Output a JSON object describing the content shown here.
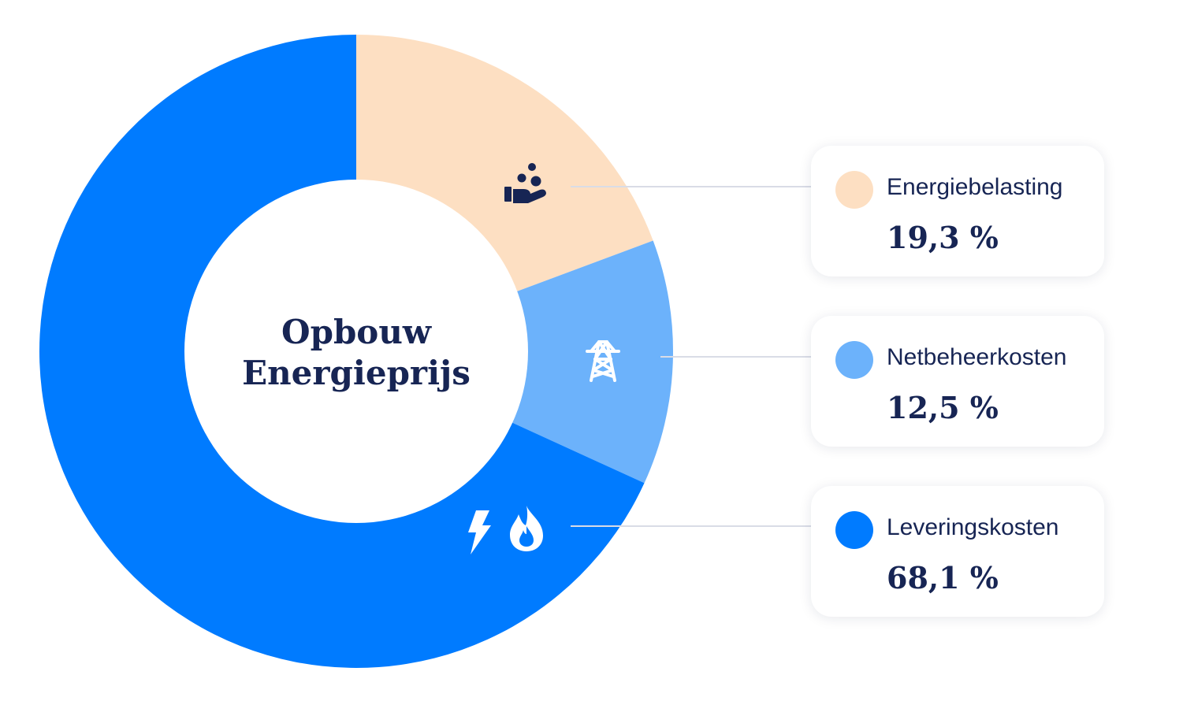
{
  "chart_data": {
    "type": "pie",
    "donut": true,
    "center_title": [
      "Opbouw",
      "Energieprijs"
    ],
    "slices": [
      {
        "label": "Energiebelasting",
        "value_text": "19,3 %",
        "value": 19.3,
        "color": "#FDDFC2",
        "icon": "hand-coins-icon"
      },
      {
        "label": "Netbeheerkosten",
        "value_text": "12,5 %",
        "value": 12.5,
        "color": "#6CB2FB",
        "icon": "power-pylon-icon"
      },
      {
        "label": "Leveringskosten",
        "value_text": "68,1 %",
        "value": 68.1,
        "color": "#007BFF",
        "icon": "lightning-flame-icon"
      }
    ],
    "legend_position": "right"
  },
  "colors": {
    "text": "#172554",
    "connector": "#D9DCE6"
  }
}
